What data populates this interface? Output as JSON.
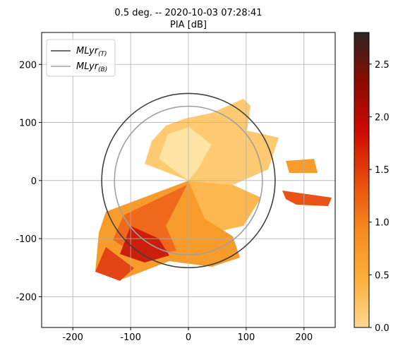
{
  "chart_data": {
    "type": "ppi",
    "title": "0.5 deg. -- 2020-10-03 07:28:41",
    "subtitle": "PIA [dB]",
    "xlim": [
      -254,
      254
    ],
    "ylim": [
      -253,
      255
    ],
    "xticks": [
      -200,
      -100,
      0,
      100,
      200
    ],
    "yticks": [
      -200,
      -100,
      0,
      100,
      200
    ],
    "grid": true,
    "legend": "upper left",
    "series": [
      {
        "name": "MLyr",
        "subscript": "(T)",
        "color": "#404040",
        "radius": 150
      },
      {
        "name": "MLyr",
        "subscript": "(B)",
        "color": "#a0a0a0",
        "radius": 128
      }
    ],
    "colorbar": {
      "lim": [
        0,
        2.8
      ],
      "ticks": [
        {
          "value": 0,
          "label": "0.0"
        },
        {
          "value": 0.5,
          "label": "0.5"
        },
        {
          "value": 1,
          "label": "1.0"
        },
        {
          "value": 1.5,
          "label": "1.5"
        },
        {
          "value": 2,
          "label": "2.0"
        },
        {
          "value": 2.5,
          "label": "2.5"
        }
      ],
      "colors": [
        "#fed98e",
        "#fdae3a",
        "#f68a1e",
        "#e84a0c",
        "#cc0a00",
        "#8c0a00",
        "#2d2424"
      ]
    }
  }
}
